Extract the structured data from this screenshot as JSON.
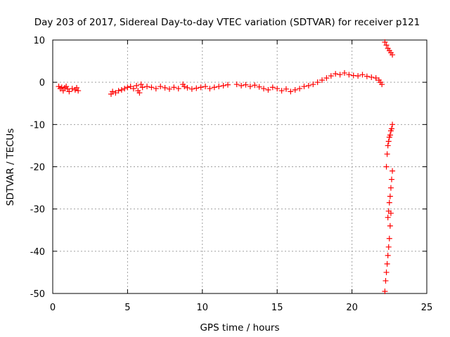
{
  "chart_data": {
    "type": "scatter",
    "title": "Day 203 of 2017, Sidereal Day-to-day VTEC variation (SDTVAR) for receiver p121",
    "xlabel": "GPS time / hours",
    "ylabel": "SDTVAR / TECUs",
    "xlim": [
      0,
      25
    ],
    "ylim": [
      -50,
      10
    ],
    "xticks": [
      "0",
      "5",
      "10",
      "15",
      "20",
      "25"
    ],
    "yticks": [
      "10",
      "0",
      "-10",
      "-20",
      "-30",
      "-40",
      "-50"
    ],
    "grid": true,
    "marker": "+",
    "series": [
      {
        "name": "SDTVAR",
        "color": "#ff0000",
        "x": [
          0.4,
          0.5,
          0.6,
          0.7,
          0.8,
          0.9,
          1.0,
          1.1,
          1.3,
          1.5,
          1.6,
          1.7,
          3.9,
          4.0,
          4.2,
          4.4,
          4.6,
          4.8,
          5.0,
          5.2,
          5.4,
          5.6,
          5.8,
          6.0,
          5.9,
          5.7,
          6.3,
          6.6,
          6.9,
          7.2,
          7.5,
          7.8,
          8.1,
          8.4,
          8.7,
          8.8,
          9.0,
          9.3,
          9.6,
          9.9,
          10.2,
          10.5,
          10.8,
          11.1,
          11.4,
          11.7,
          12.3,
          12.6,
          12.9,
          13.2,
          13.5,
          13.8,
          14.1,
          14.4,
          14.7,
          15.0,
          15.3,
          15.6,
          15.9,
          16.2,
          16.5,
          16.8,
          17.1,
          17.4,
          17.7,
          18.0,
          18.3,
          18.6,
          18.9,
          19.2,
          19.5,
          19.8,
          20.1,
          20.4,
          20.7,
          21.0,
          21.3,
          21.6,
          21.8,
          21.9,
          22.0,
          22.2,
          22.3,
          22.4,
          22.5,
          22.6,
          22.7,
          22.3,
          22.35,
          22.4,
          22.45,
          22.5,
          22.55,
          22.6,
          22.65,
          22.7,
          22.4,
          22.45,
          22.5,
          22.55,
          22.6,
          22.65,
          22.7,
          22.2,
          22.25,
          22.3,
          22.35,
          22.4,
          22.45,
          22.5,
          22.55,
          22.6
        ],
        "y": [
          -1.0,
          -1.5,
          -1.2,
          -2.0,
          -1.3,
          -1.0,
          -1.6,
          -2.2,
          -1.5,
          -1.8,
          -1.3,
          -2.0,
          -2.8,
          -2.2,
          -2.5,
          -2.0,
          -1.8,
          -1.5,
          -1.2,
          -1.0,
          -1.5,
          -0.8,
          -2.5,
          -1.2,
          -0.5,
          -2.0,
          -1.0,
          -1.2,
          -1.5,
          -1.0,
          -1.3,
          -1.6,
          -1.2,
          -1.5,
          -0.5,
          -1.0,
          -1.3,
          -1.6,
          -1.4,
          -1.2,
          -1.0,
          -1.5,
          -1.2,
          -1.0,
          -0.8,
          -0.6,
          -0.5,
          -0.8,
          -0.6,
          -1.0,
          -0.7,
          -1.1,
          -1.5,
          -1.8,
          -1.2,
          -1.5,
          -2.0,
          -1.6,
          -2.2,
          -1.8,
          -1.5,
          -1.0,
          -0.8,
          -0.5,
          0.0,
          0.5,
          1.0,
          1.5,
          2.0,
          1.8,
          2.2,
          1.8,
          1.6,
          1.5,
          1.8,
          1.4,
          1.2,
          1.0,
          0.5,
          0.0,
          -0.5,
          9.5,
          8.8,
          8.0,
          7.5,
          7.0,
          6.5,
          -20.0,
          -17.0,
          -15.0,
          -14.0,
          -13.0,
          -12.5,
          -11.5,
          -11.0,
          -10.0,
          -32.0,
          -30.5,
          -28.5,
          -27.0,
          -25.0,
          -23.0,
          -21.0,
          -49.5,
          -47.0,
          -45.0,
          -43.0,
          -41.0,
          -39.0,
          -37.0,
          -34.0,
          -31.0
        ]
      }
    ]
  }
}
